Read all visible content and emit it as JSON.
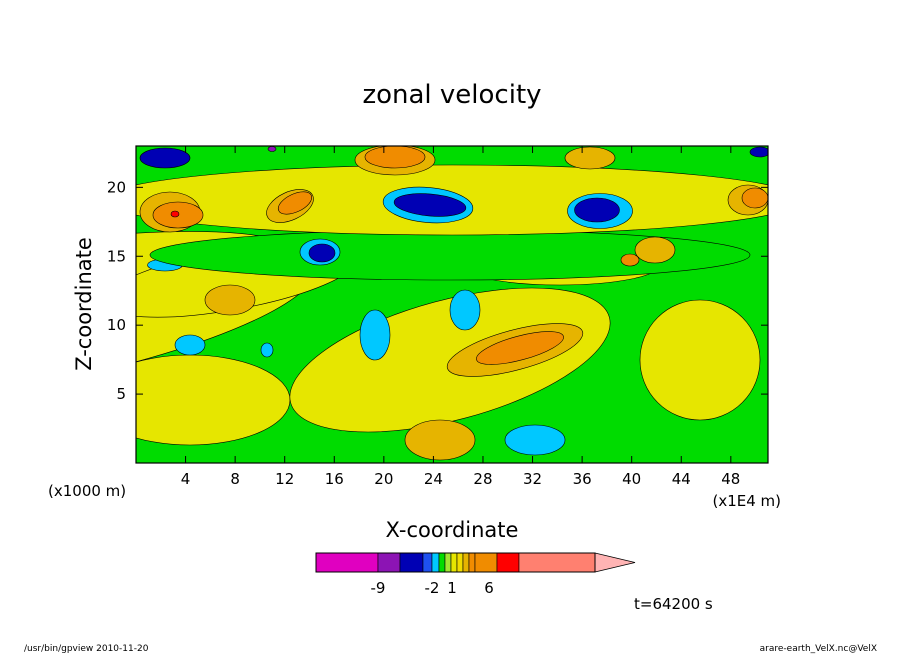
{
  "chart_data": {
    "type": "heatmap",
    "title": "zonal velocity",
    "xlabel": "X-coordinate",
    "ylabel": "Z-coordinate",
    "x_unit_left": "(x1000 m)",
    "x_unit_right": "(x1E4 m)",
    "xlim": [
      0,
      51
    ],
    "ylim": [
      0,
      23
    ],
    "x_ticks": [
      4,
      8,
      12,
      16,
      20,
      24,
      28,
      32,
      36,
      40,
      44,
      48
    ],
    "y_ticks": [
      5,
      10,
      15,
      20
    ],
    "time_label": "t=64200 s",
    "colorbar": {
      "levels": [
        -15,
        -9,
        -7,
        -5,
        -4,
        -3,
        -2,
        -1,
        0,
        1,
        2,
        3,
        4,
        6,
        8,
        16,
        20
      ],
      "colors": [
        "#e000c0",
        "#8c14b4",
        "#0000b4",
        "#1e50f0",
        "#00c8ff",
        "#00dc00",
        "#a0e632",
        "#e6e600",
        "#f0dc00",
        "#e6b400",
        "#f08c00",
        "#f08c00",
        "#ff0000",
        "#ff8070",
        "#ffb4b4"
      ],
      "tick_labels": [
        {
          "value": -9,
          "label": "-9"
        },
        {
          "value": -2,
          "label": "-2"
        },
        {
          "value": 1,
          "label": "1"
        },
        {
          "value": 6,
          "label": "6"
        }
      ]
    },
    "field_features": [
      {
        "x": 16,
        "z": 15.5,
        "value": -9
      },
      {
        "x": 27,
        "z": 19,
        "value": -9
      },
      {
        "x": 35,
        "z": 18.5,
        "value": -9
      },
      {
        "x": 29,
        "z": 9,
        "value": 4
      },
      {
        "x": 3,
        "z": 18,
        "value": 6
      },
      {
        "x": 16,
        "z": 20,
        "value": 5
      }
    ]
  },
  "footer": {
    "left": "/usr/bin/gpview  2010-11-20",
    "right": "arare-earth_VelX.nc@VelX"
  },
  "colors": {
    "background": "#ffffff",
    "frame": "#000000"
  }
}
